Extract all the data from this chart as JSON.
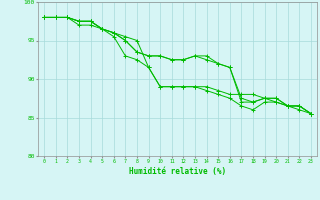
{
  "xlabel": "Humidité relative (%)",
  "background_color": "#d6f5f5",
  "grid_color": "#a8dada",
  "line_color": "#00bb00",
  "ylim": [
    80,
    100
  ],
  "xlim": [
    -0.5,
    23.5
  ],
  "yticks": [
    80,
    85,
    90,
    95,
    100
  ],
  "xticks": [
    0,
    1,
    2,
    3,
    4,
    5,
    6,
    7,
    8,
    9,
    10,
    11,
    12,
    13,
    14,
    15,
    16,
    17,
    18,
    19,
    20,
    21,
    22,
    23
  ],
  "series": [
    [
      98.0,
      98.0,
      98.0,
      97.0,
      97.0,
      96.5,
      96.0,
      95.5,
      95.0,
      91.5,
      89.0,
      89.0,
      89.0,
      89.0,
      89.0,
      88.5,
      88.0,
      88.0,
      88.0,
      87.5,
      87.5,
      86.5,
      86.5,
      85.5
    ],
    [
      98.0,
      98.0,
      98.0,
      97.5,
      97.5,
      96.5,
      96.0,
      95.0,
      93.5,
      93.0,
      93.0,
      92.5,
      92.5,
      93.0,
      93.0,
      92.0,
      91.5,
      87.5,
      87.0,
      87.5,
      87.5,
      86.5,
      86.5,
      85.5
    ],
    [
      98.0,
      98.0,
      98.0,
      97.5,
      97.5,
      96.5,
      96.0,
      95.0,
      93.5,
      93.0,
      93.0,
      92.5,
      92.5,
      93.0,
      92.5,
      92.0,
      91.5,
      87.0,
      87.0,
      87.5,
      87.0,
      86.5,
      86.0,
      85.5
    ],
    [
      98.0,
      98.0,
      98.0,
      97.5,
      97.5,
      96.5,
      95.5,
      93.0,
      92.5,
      91.5,
      89.0,
      89.0,
      89.0,
      89.0,
      88.5,
      88.0,
      87.5,
      86.5,
      86.0,
      87.0,
      87.0,
      86.5,
      86.5,
      85.5
    ]
  ]
}
